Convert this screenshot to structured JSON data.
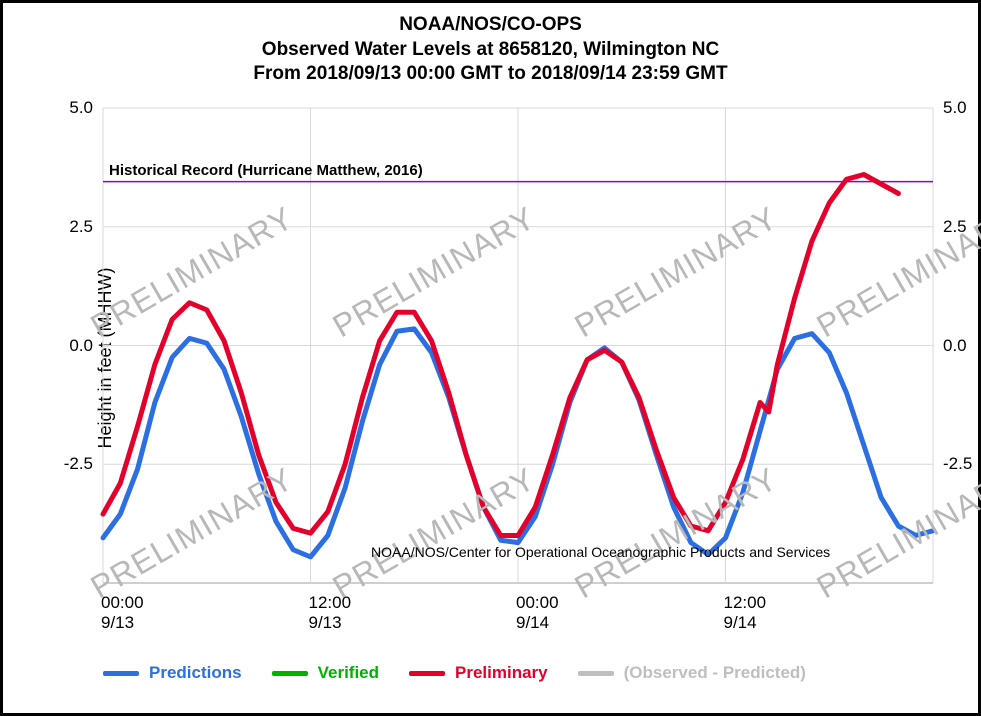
{
  "title": {
    "line1": "NOAA/NOS/CO-OPS",
    "line2": "Observed Water Levels at 8658120, Wilmington NC",
    "line3": "From 2018/09/13 00:00 GMT to 2018/09/14 23:59 GMT",
    "fontsize": 19,
    "fontweight": "bold",
    "color": "#000000"
  },
  "y_axis": {
    "label": "Height in feet (MHHW)",
    "label_fontsize": 18,
    "ylim": [
      -5.0,
      5.0
    ],
    "ticks": [
      -2.5,
      0.0,
      2.5,
      5.0
    ],
    "tick_labels": [
      "-2.5",
      "0.0",
      "2.5",
      "5.0"
    ],
    "tick_fontsize": 17,
    "grid_color": "#d9d9d9",
    "baseline_color": "#bfbfbf"
  },
  "x_axis": {
    "xlim": [
      0,
      48
    ],
    "ticks": [
      0,
      12,
      24,
      36
    ],
    "tick_labels_top": [
      "00:00",
      "12:00",
      "00:00",
      "12:00"
    ],
    "tick_labels_bottom": [
      "9/13",
      "9/13",
      "9/14",
      "9/14"
    ],
    "tick_fontsize": 17,
    "grid_color": "#d9d9d9"
  },
  "annotation": {
    "text": "Historical Record (Hurricane Matthew, 2016)",
    "y_value": 3.45,
    "line_color": "#9400d3",
    "line_width": 1.5,
    "text_color": "#000000",
    "fontsize": 15,
    "fontweight": "bold"
  },
  "attribution": {
    "text": "NOAA/NOS/Center for Operational Oceanographic Products and Services",
    "fontsize": 14,
    "color": "#000000"
  },
  "watermark": {
    "text": "PRELIMINARY",
    "color": "#b8b8b8",
    "fontsize": 32,
    "rotation_deg": -30,
    "positions": [
      {
        "x_hours": 0,
        "y_value": -4.7
      },
      {
        "x_hours": 0,
        "y_value": 0.8
      },
      {
        "x_hours": 14,
        "y_value": -4.7
      },
      {
        "x_hours": 14,
        "y_value": 0.8
      },
      {
        "x_hours": 28,
        "y_value": -4.7
      },
      {
        "x_hours": 28,
        "y_value": 0.8
      },
      {
        "x_hours": 42,
        "y_value": -4.7
      },
      {
        "x_hours": 42,
        "y_value": 0.8
      }
    ]
  },
  "series": {
    "predictions": {
      "label": "Predictions",
      "color": "#2b6fe3",
      "line_width": 5,
      "data": [
        [
          0,
          -4.05
        ],
        [
          1,
          -3.55
        ],
        [
          2,
          -2.6
        ],
        [
          3,
          -1.2
        ],
        [
          4,
          -0.25
        ],
        [
          5,
          0.15
        ],
        [
          6,
          0.05
        ],
        [
          7,
          -0.5
        ],
        [
          8,
          -1.5
        ],
        [
          9,
          -2.7
        ],
        [
          10,
          -3.7
        ],
        [
          11,
          -4.3
        ],
        [
          12,
          -4.45
        ],
        [
          13,
          -4.0
        ],
        [
          14,
          -3.0
        ],
        [
          15,
          -1.6
        ],
        [
          16,
          -0.4
        ],
        [
          17,
          0.3
        ],
        [
          18,
          0.35
        ],
        [
          19,
          -0.15
        ],
        [
          20,
          -1.1
        ],
        [
          21,
          -2.3
        ],
        [
          22,
          -3.4
        ],
        [
          23,
          -4.1
        ],
        [
          24,
          -4.15
        ],
        [
          25,
          -3.6
        ],
        [
          26,
          -2.5
        ],
        [
          27,
          -1.2
        ],
        [
          28,
          -0.3
        ],
        [
          29,
          -0.05
        ],
        [
          30,
          -0.35
        ],
        [
          31,
          -1.15
        ],
        [
          32,
          -2.3
        ],
        [
          33,
          -3.4
        ],
        [
          34,
          -4.15
        ],
        [
          35,
          -4.4
        ],
        [
          36,
          -4.05
        ],
        [
          37,
          -3.1
        ],
        [
          38,
          -1.8
        ],
        [
          39,
          -0.5
        ],
        [
          40,
          0.15
        ],
        [
          41,
          0.25
        ],
        [
          42,
          -0.15
        ],
        [
          43,
          -1.0
        ],
        [
          44,
          -2.1
        ],
        [
          45,
          -3.2
        ],
        [
          46,
          -3.8
        ],
        [
          47,
          -4.0
        ],
        [
          48,
          -3.9
        ]
      ]
    },
    "verified": {
      "label": "Verified",
      "color": "#00b200",
      "line_width": 5,
      "data": []
    },
    "preliminary": {
      "label": "Preliminary",
      "color": "#e3002b",
      "line_width": 5,
      "data": [
        [
          0,
          -3.55
        ],
        [
          1,
          -2.9
        ],
        [
          2,
          -1.7
        ],
        [
          3,
          -0.4
        ],
        [
          4,
          0.55
        ],
        [
          5,
          0.9
        ],
        [
          6,
          0.75
        ],
        [
          7,
          0.1
        ],
        [
          8,
          -1.0
        ],
        [
          9,
          -2.3
        ],
        [
          10,
          -3.3
        ],
        [
          11,
          -3.85
        ],
        [
          12,
          -3.95
        ],
        [
          13,
          -3.5
        ],
        [
          14,
          -2.5
        ],
        [
          15,
          -1.1
        ],
        [
          16,
          0.1
        ],
        [
          17,
          0.7
        ],
        [
          18,
          0.7
        ],
        [
          19,
          0.1
        ],
        [
          20,
          -1.0
        ],
        [
          21,
          -2.3
        ],
        [
          22,
          -3.4
        ],
        [
          23,
          -4.0
        ],
        [
          24,
          -4.0
        ],
        [
          25,
          -3.4
        ],
        [
          26,
          -2.3
        ],
        [
          27,
          -1.1
        ],
        [
          28,
          -0.3
        ],
        [
          29,
          -0.1
        ],
        [
          30,
          -0.35
        ],
        [
          31,
          -1.1
        ],
        [
          32,
          -2.2
        ],
        [
          33,
          -3.2
        ],
        [
          34,
          -3.8
        ],
        [
          35,
          -3.9
        ],
        [
          36,
          -3.3
        ],
        [
          37,
          -2.4
        ],
        [
          38,
          -1.2
        ],
        [
          38.5,
          -1.4
        ],
        [
          39,
          -0.4
        ],
        [
          40,
          1.0
        ],
        [
          41,
          2.2
        ],
        [
          42,
          3.0
        ],
        [
          43,
          3.5
        ],
        [
          44,
          3.6
        ],
        [
          45,
          3.4
        ],
        [
          46,
          3.2
        ]
      ]
    },
    "obs_minus_pred": {
      "label": "(Observed - Predicted)",
      "color": "#bfbfbf",
      "line_width": 5,
      "data": []
    }
  },
  "legend": {
    "items": [
      "predictions",
      "verified",
      "preliminary",
      "obs_minus_pred"
    ],
    "fontsize": 17,
    "fontweight": "bold"
  },
  "background_color": "#ffffff",
  "border_color": "#000000",
  "border_width": 3
}
